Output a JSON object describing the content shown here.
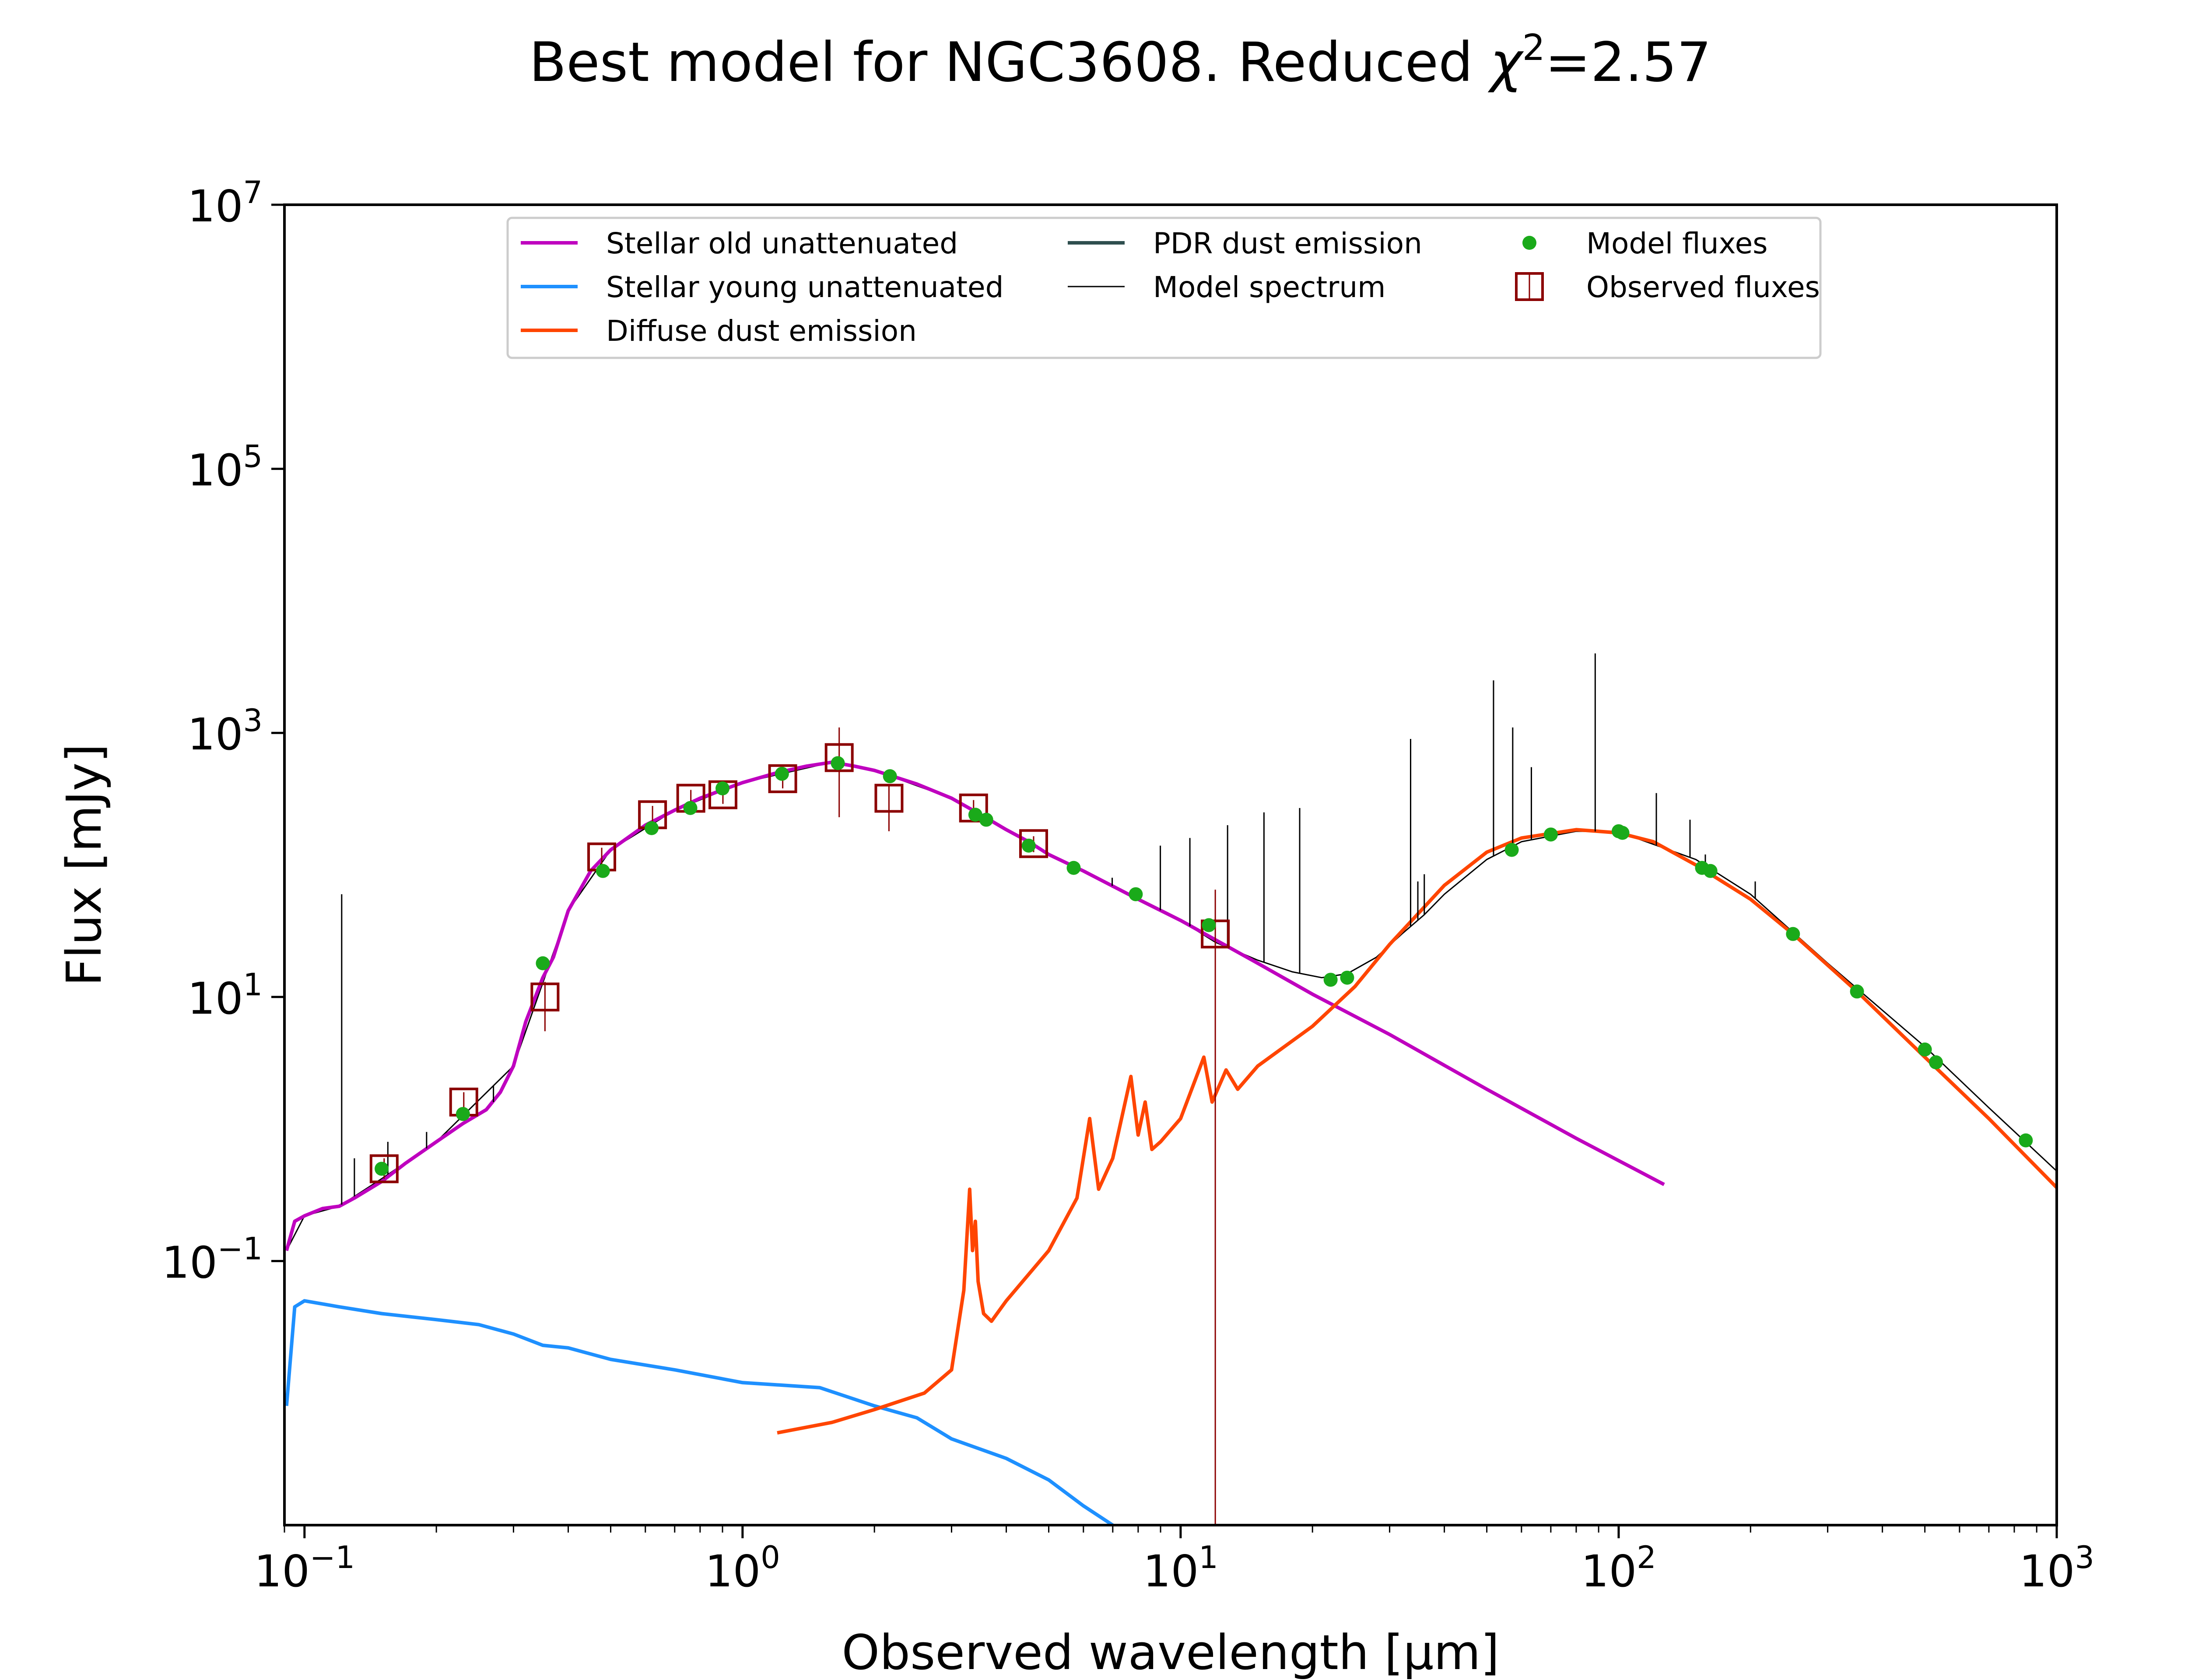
{
  "chart_data": {
    "type": "line",
    "title_prefix": "Best model for NGC3608. Reduced ",
    "title_chi": "χ",
    "title_exp": "2",
    "title_suffix": "=2.57",
    "xlabel": "Observed wavelength [μm]",
    "ylabel": "Flux [mJy]",
    "x_scale": "log",
    "y_scale": "log",
    "xlim": [
      0.09,
      1000
    ],
    "ylim": [
      0.001,
      10000000
    ],
    "grid": false,
    "legend_position": "upper center",
    "x_ticks": [
      {
        "value": 0.1,
        "base": "10",
        "exp": "−1"
      },
      {
        "value": 1,
        "base": "10",
        "exp": "0"
      },
      {
        "value": 10,
        "base": "10",
        "exp": "1"
      },
      {
        "value": 100,
        "base": "10",
        "exp": "2"
      },
      {
        "value": 1000,
        "base": "10",
        "exp": "3"
      }
    ],
    "y_ticks": [
      {
        "value": 0.1,
        "base": "10",
        "exp": "−1"
      },
      {
        "value": 10,
        "base": "10",
        "exp": "1"
      },
      {
        "value": 1000,
        "base": "10",
        "exp": "3"
      },
      {
        "value": 100000,
        "base": "10",
        "exp": "5"
      },
      {
        "value": 10000000,
        "base": "10",
        "exp": "7"
      }
    ],
    "colors": {
      "stellar_old": "#bf00bf",
      "stellar_young": "#1e90ff",
      "diffuse_dust": "#ff4500",
      "pdr_dust": "#2f4f4f",
      "model_spectrum": "#000000",
      "model_fluxes": "#1aaa1a",
      "observed_fluxes": "#8b0000"
    },
    "legend": [
      {
        "label": "Stellar old unattenuated",
        "kind": "line",
        "color": "#bf00bf"
      },
      {
        "label": "Stellar young unattenuated",
        "kind": "line",
        "color": "#1e90ff"
      },
      {
        "label": "Diffuse dust emission",
        "kind": "line",
        "color": "#ff4500"
      },
      {
        "label": "PDR dust emission",
        "kind": "line",
        "color": "#2f4f4f"
      },
      {
        "label": "Model spectrum",
        "kind": "thinline",
        "color": "#000000"
      },
      {
        "label": "Model fluxes",
        "kind": "dot",
        "color": "#1aaa1a"
      },
      {
        "label": "Observed fluxes",
        "kind": "square",
        "color": "#8b0000"
      }
    ],
    "series": [
      {
        "key": "stellar_old",
        "x": [
          0.091,
          0.095,
          0.1,
          0.11,
          0.12,
          0.13,
          0.15,
          0.17,
          0.2,
          0.23,
          0.26,
          0.28,
          0.3,
          0.32,
          0.35,
          0.37,
          0.4,
          0.45,
          0.5,
          0.6,
          0.7,
          0.8,
          0.9,
          1.0,
          1.2,
          1.4,
          1.6,
          1.8,
          2.0,
          2.2,
          2.5,
          3.0,
          3.5,
          4.0,
          4.5,
          5.0,
          6.0,
          8.0,
          10,
          15,
          20,
          30,
          50,
          80,
          127
        ],
        "y": [
          0.12,
          0.2,
          0.22,
          0.25,
          0.26,
          0.3,
          0.4,
          0.55,
          0.8,
          1.1,
          1.4,
          1.9,
          3.0,
          6.5,
          14,
          20,
          45,
          90,
          130,
          200,
          260,
          320,
          370,
          420,
          500,
          560,
          600,
          560,
          520,
          470,
          410,
          320,
          240,
          185,
          150,
          120,
          90,
          55,
          38,
          18,
          10.5,
          5.2,
          2.0,
          0.85,
          0.38
        ]
      },
      {
        "key": "stellar_young",
        "x": [
          0.091,
          0.095,
          0.1,
          0.12,
          0.15,
          0.2,
          0.25,
          0.3,
          0.35,
          0.4,
          0.5,
          0.7,
          1.0,
          1.5,
          2.0,
          2.5,
          3.0,
          4.0,
          5.0,
          6.0,
          7.0
        ],
        "y": [
          0.008,
          0.045,
          0.05,
          0.045,
          0.04,
          0.036,
          0.033,
          0.028,
          0.023,
          0.022,
          0.018,
          0.015,
          0.012,
          0.011,
          0.008,
          0.0065,
          0.0045,
          0.0032,
          0.0022,
          0.0014,
          0.001
        ]
      },
      {
        "key": "diffuse_dust",
        "x": [
          1.2,
          1.6,
          2.0,
          2.6,
          3.0,
          3.2,
          3.3,
          3.35,
          3.4,
          3.45,
          3.55,
          3.7,
          4.0,
          5.0,
          5.8,
          6.2,
          6.5,
          7.0,
          7.7,
          8.0,
          8.3,
          8.6,
          9.0,
          10.0,
          11.3,
          11.8,
          12.7,
          13.5,
          15,
          20,
          25,
          30,
          40,
          50,
          60,
          80,
          100,
          120,
          150,
          200,
          250,
          350,
          500,
          700,
          1000
        ],
        "y": [
          0.005,
          0.006,
          0.0075,
          0.01,
          0.015,
          0.06,
          0.35,
          0.12,
          0.2,
          0.07,
          0.04,
          0.035,
          0.05,
          0.12,
          0.3,
          1.2,
          0.35,
          0.6,
          2.5,
          0.9,
          1.6,
          0.7,
          0.8,
          1.2,
          3.5,
          1.6,
          2.8,
          2.0,
          3.0,
          6.0,
          12,
          25,
          70,
          125,
          160,
          185,
          175,
          150,
          100,
          55,
          30,
          11,
          3.5,
          1.2,
          0.36
        ]
      },
      {
        "key": "model_spectrum",
        "x": [
          0.091,
          0.1,
          0.12,
          0.15,
          0.2,
          0.3,
          0.4,
          0.5,
          0.7,
          1.0,
          1.6,
          2.0,
          3.0,
          4.0,
          5.0,
          6.0,
          8.0,
          10,
          12,
          15,
          18,
          21,
          24,
          28,
          32,
          36,
          40,
          50,
          60,
          80,
          100,
          150,
          200,
          300,
          500,
          700,
          1000
        ],
        "y": [
          0.12,
          0.22,
          0.26,
          0.42,
          0.8,
          3.0,
          45,
          130,
          260,
          420,
          600,
          520,
          320,
          185,
          120,
          90,
          55,
          38,
          26,
          19,
          15.5,
          14,
          15,
          20,
          30,
          42,
          60,
          110,
          150,
          180,
          178,
          110,
          60,
          18,
          4.2,
          1.45,
          0.48
        ]
      }
    ],
    "emission_lines": [
      {
        "x": 0.1216,
        "y": 60
      },
      {
        "x": 0.13,
        "y": 0.6
      },
      {
        "x": 0.155,
        "y": 0.8
      },
      {
        "x": 0.19,
        "y": 0.95
      },
      {
        "x": 0.27,
        "y": 1.6
      },
      {
        "x": 6.98,
        "y": 80
      },
      {
        "x": 8.99,
        "y": 140
      },
      {
        "x": 10.5,
        "y": 160
      },
      {
        "x": 12.8,
        "y": 200
      },
      {
        "x": 15.5,
        "y": 250
      },
      {
        "x": 18.7,
        "y": 270
      },
      {
        "x": 33.5,
        "y": 900
      },
      {
        "x": 34.8,
        "y": 75
      },
      {
        "x": 36.0,
        "y": 85
      },
      {
        "x": 51.8,
        "y": 2500
      },
      {
        "x": 57.3,
        "y": 1100
      },
      {
        "x": 63.2,
        "y": 550
      },
      {
        "x": 88.4,
        "y": 4000
      },
      {
        "x": 121.9,
        "y": 350
      },
      {
        "x": 145.5,
        "y": 220
      },
      {
        "x": 157.7,
        "y": 120
      },
      {
        "x": 205,
        "y": 75
      }
    ],
    "model_fluxes": {
      "x": [
        0.15,
        0.23,
        0.35,
        0.48,
        0.62,
        0.76,
        0.9,
        1.23,
        1.65,
        2.17,
        3.4,
        3.6,
        4.5,
        5.7,
        7.9,
        11.6,
        22,
        24,
        57,
        70,
        100,
        102,
        155,
        162,
        250,
        350,
        500,
        530,
        850
      ],
      "y": [
        0.5,
        1.3,
        18,
        90,
        190,
        270,
        380,
        490,
        590,
        470,
        240,
        220,
        140,
        95,
        60,
        35,
        13.5,
        14,
        130,
        170,
        180,
        175,
        95,
        90,
        30,
        11,
        4,
        3.2,
        0.82
      ]
    },
    "observed_fluxes": {
      "x": [
        0.152,
        0.231,
        0.354,
        0.477,
        0.623,
        0.762,
        0.902,
        1.235,
        1.662,
        2.159,
        3.368,
        4.618,
        12.0
      ],
      "y": [
        0.5,
        1.6,
        10,
        115,
        240,
        320,
        340,
        450,
        650,
        320,
        270,
        145,
        30
      ],
      "err_lo": [
        0.42,
        1.3,
        5.5,
        95,
        200,
        270,
        290,
        380,
        230,
        180,
        230,
        125,
        0.001
      ],
      "err_hi": [
        0.6,
        1.9,
        13,
        135,
        280,
        370,
        395,
        520,
        1100,
        400,
        310,
        165,
        65
      ]
    }
  }
}
